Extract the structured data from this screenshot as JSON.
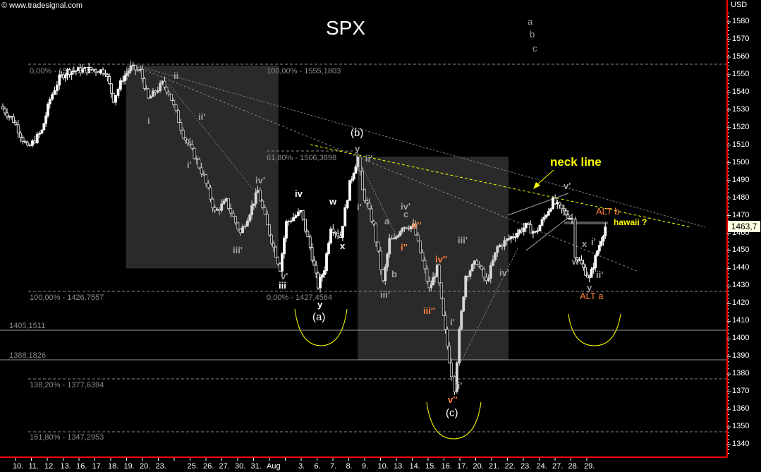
{
  "header": {
    "copyright": "© www.tradesignal.com",
    "title": "SPX",
    "currency": "USD"
  },
  "last_price": "1463,7",
  "colors": {
    "background": "#000000",
    "axis": "#ff0000",
    "neckline": "#ffff00",
    "orange_label": "#ff7f3f",
    "zone": "#2a2a2a"
  },
  "chart_data": {
    "type": "candlestick",
    "title": "SPX",
    "ylabel": "USD",
    "ylim": [
      1335,
      1585
    ],
    "yticks": [
      1580,
      1570,
      1560,
      1550,
      1540,
      1530,
      1520,
      1510,
      1500,
      1490,
      1480,
      1470,
      1460,
      1450,
      1440,
      1430,
      1420,
      1410,
      1400,
      1390,
      1380,
      1370,
      1360,
      1350,
      1340
    ],
    "xticks": [
      "10.",
      "11.",
      "12.",
      "13.",
      "16.",
      "17.",
      "18.",
      "19.",
      "20.",
      "23.",
      "",
      "25.",
      "26.",
      "27.",
      "30.",
      "31.",
      "Aug",
      "",
      "3.",
      "6.",
      "7.",
      "8.",
      "9.",
      "10.",
      "13.",
      "14.",
      "15.",
      "16.",
      "17.",
      "20.",
      "21.",
      "22.",
      "23.",
      "24.",
      "27.",
      "28.",
      "29."
    ],
    "price_path": [
      [
        -1.2,
        1532
      ],
      [
        -0.4,
        1524
      ],
      [
        0.5,
        1508
      ],
      [
        1.4,
        1518
      ],
      [
        1.9,
        1536
      ],
      [
        2.5,
        1548
      ],
      [
        3.0,
        1552
      ],
      [
        4.5,
        1553
      ],
      [
        5.4,
        1552
      ],
      [
        5.9,
        1536
      ],
      [
        6.5,
        1548
      ],
      [
        7.0,
        1554
      ],
      [
        7.6,
        1552
      ],
      [
        8.1,
        1536
      ],
      [
        9.0,
        1545
      ],
      [
        9.4,
        1540
      ],
      [
        10.3,
        1516
      ],
      [
        11.0,
        1504
      ],
      [
        11.6,
        1492
      ],
      [
        12.3,
        1472
      ],
      [
        13.0,
        1478
      ],
      [
        13.9,
        1460
      ],
      [
        14.5,
        1472
      ],
      [
        15.0,
        1484
      ],
      [
        15.6,
        1464
      ],
      [
        16.4,
        1440
      ],
      [
        16.8,
        1466
      ],
      [
        17.7,
        1472
      ],
      [
        18.3,
        1452
      ],
      [
        18.8,
        1430
      ],
      [
        19.2,
        1440
      ],
      [
        19.6,
        1464
      ],
      [
        20.2,
        1458
      ],
      [
        20.8,
        1488
      ],
      [
        21.3,
        1503
      ],
      [
        21.6,
        1484
      ],
      [
        22.3,
        1464
      ],
      [
        22.9,
        1432
      ],
      [
        23.3,
        1456
      ],
      [
        23.6,
        1456
      ],
      [
        24.1,
        1464
      ],
      [
        24.8,
        1464
      ],
      [
        25.4,
        1444
      ],
      [
        25.8,
        1428
      ],
      [
        26.3,
        1440
      ],
      [
        26.7,
        1412
      ],
      [
        27.2,
        1380
      ],
      [
        27.4,
        1372
      ],
      [
        27.7,
        1404
      ],
      [
        28.1,
        1436
      ],
      [
        28.8,
        1444
      ],
      [
        29.4,
        1432
      ],
      [
        30.1,
        1452
      ],
      [
        30.7,
        1456
      ],
      [
        31.9,
        1464
      ],
      [
        32.5,
        1460
      ],
      [
        33.6,
        1478
      ],
      [
        34.3,
        1472
      ],
      [
        34.8,
        1468
      ],
      [
        35.0,
        1448
      ],
      [
        35.4,
        1442
      ],
      [
        35.9,
        1434
      ],
      [
        36.4,
        1450
      ],
      [
        36.9,
        1463.7
      ]
    ],
    "zones": [
      {
        "from_day": 6.7,
        "to_day": 16.3,
        "high": 1555.2,
        "low": 1440
      },
      {
        "from_day": 21.3,
        "to_day": 30.8,
        "high": 1503.5,
        "low": 1388.2
      }
    ],
    "fib_labels": [
      "0,00% - 1555,3325",
      "100,00% - 1555,1803",
      "61,80% - 1506,3898",
      "100,00% - 1426,7557",
      "0,00% - 1427,4564",
      "138,20% - 1377,6394",
      "161,80% - 1347,2953"
    ],
    "levels": [
      "1405,1511",
      "1388,1826"
    ],
    "annotations": [
      "a",
      "b",
      "c",
      "ii",
      "i",
      "ii'",
      "i'",
      "iv'",
      "iii'",
      "iv",
      "w",
      "x",
      "v'",
      "iii",
      "y",
      "(a)",
      "(b)",
      "y",
      "ii'",
      "i'",
      "a",
      "iv'",
      "c",
      "ii''",
      "i''",
      "b",
      "iii'",
      "iii'",
      "iv''",
      "iv'",
      "iii''",
      "i'",
      "ii'",
      "v''",
      "(c)",
      "neck line",
      "v'",
      "ALT b",
      "hawaii ?",
      "x",
      "i'",
      "w",
      "ii'",
      "y",
      "ALT a"
    ]
  }
}
